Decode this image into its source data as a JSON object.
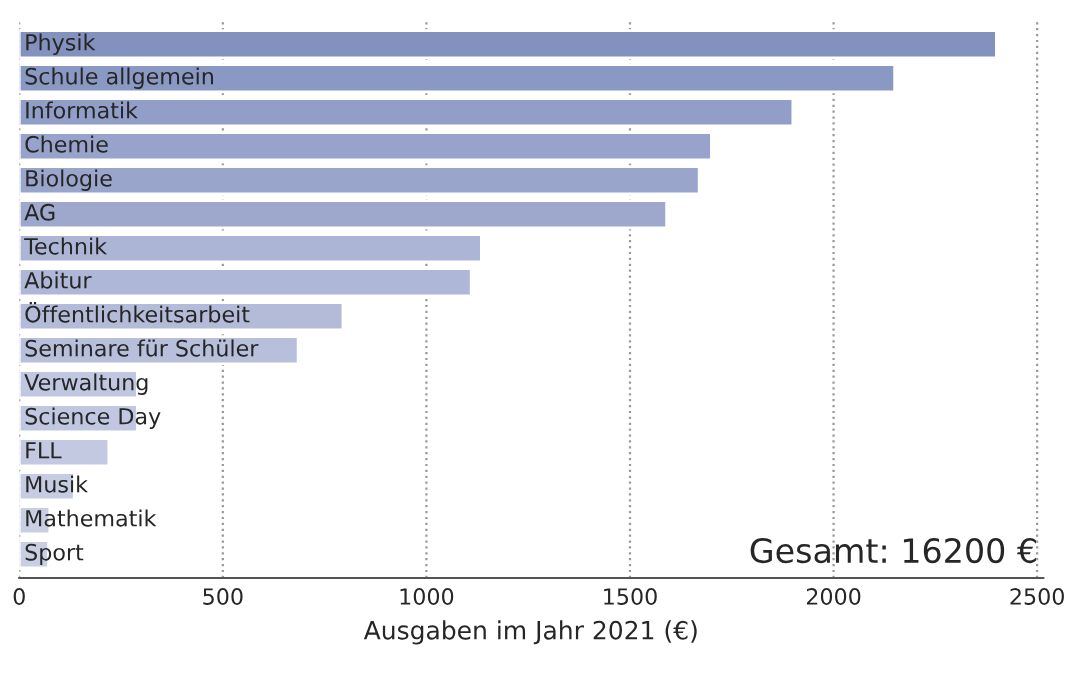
{
  "chart_data": {
    "type": "bar",
    "orientation": "horizontal",
    "xlabel": "Ausgaben im Jahr 2021 (€)",
    "categories": [
      "Physik",
      "Schule allgemein",
      "Informatik",
      "Chemie",
      "Biologie",
      "AG",
      "Technik",
      "Abitur",
      "Öffentlichkeitsarbeit",
      "Seminare für Schüler",
      "Verwaltung",
      "Science Day",
      "FLL",
      "Musik",
      "Mathematik",
      "Sport"
    ],
    "values": [
      2400,
      2150,
      1900,
      1700,
      1670,
      1590,
      1135,
      1110,
      795,
      685,
      290,
      290,
      220,
      135,
      75,
      72
    ],
    "colors": [
      "#8391bf",
      "#8a98c4",
      "#919ec7",
      "#97a3ca",
      "#99a5cb",
      "#9da8cc",
      "#acb5d6",
      "#aeb7d7",
      "#b3bbd9",
      "#b7bfdb",
      "#c0c7e0",
      "#c0c7e0",
      "#c3c9e1",
      "#c6cce2",
      "#c9cee3",
      "#c9cee3"
    ],
    "xlim": [
      0,
      2515
    ],
    "xticks": [
      0,
      500,
      1000,
      1500,
      2000,
      2500
    ],
    "grid": "x",
    "tick_labels": "x",
    "annotations": [
      "Gesamt: 16200 €"
    ]
  }
}
